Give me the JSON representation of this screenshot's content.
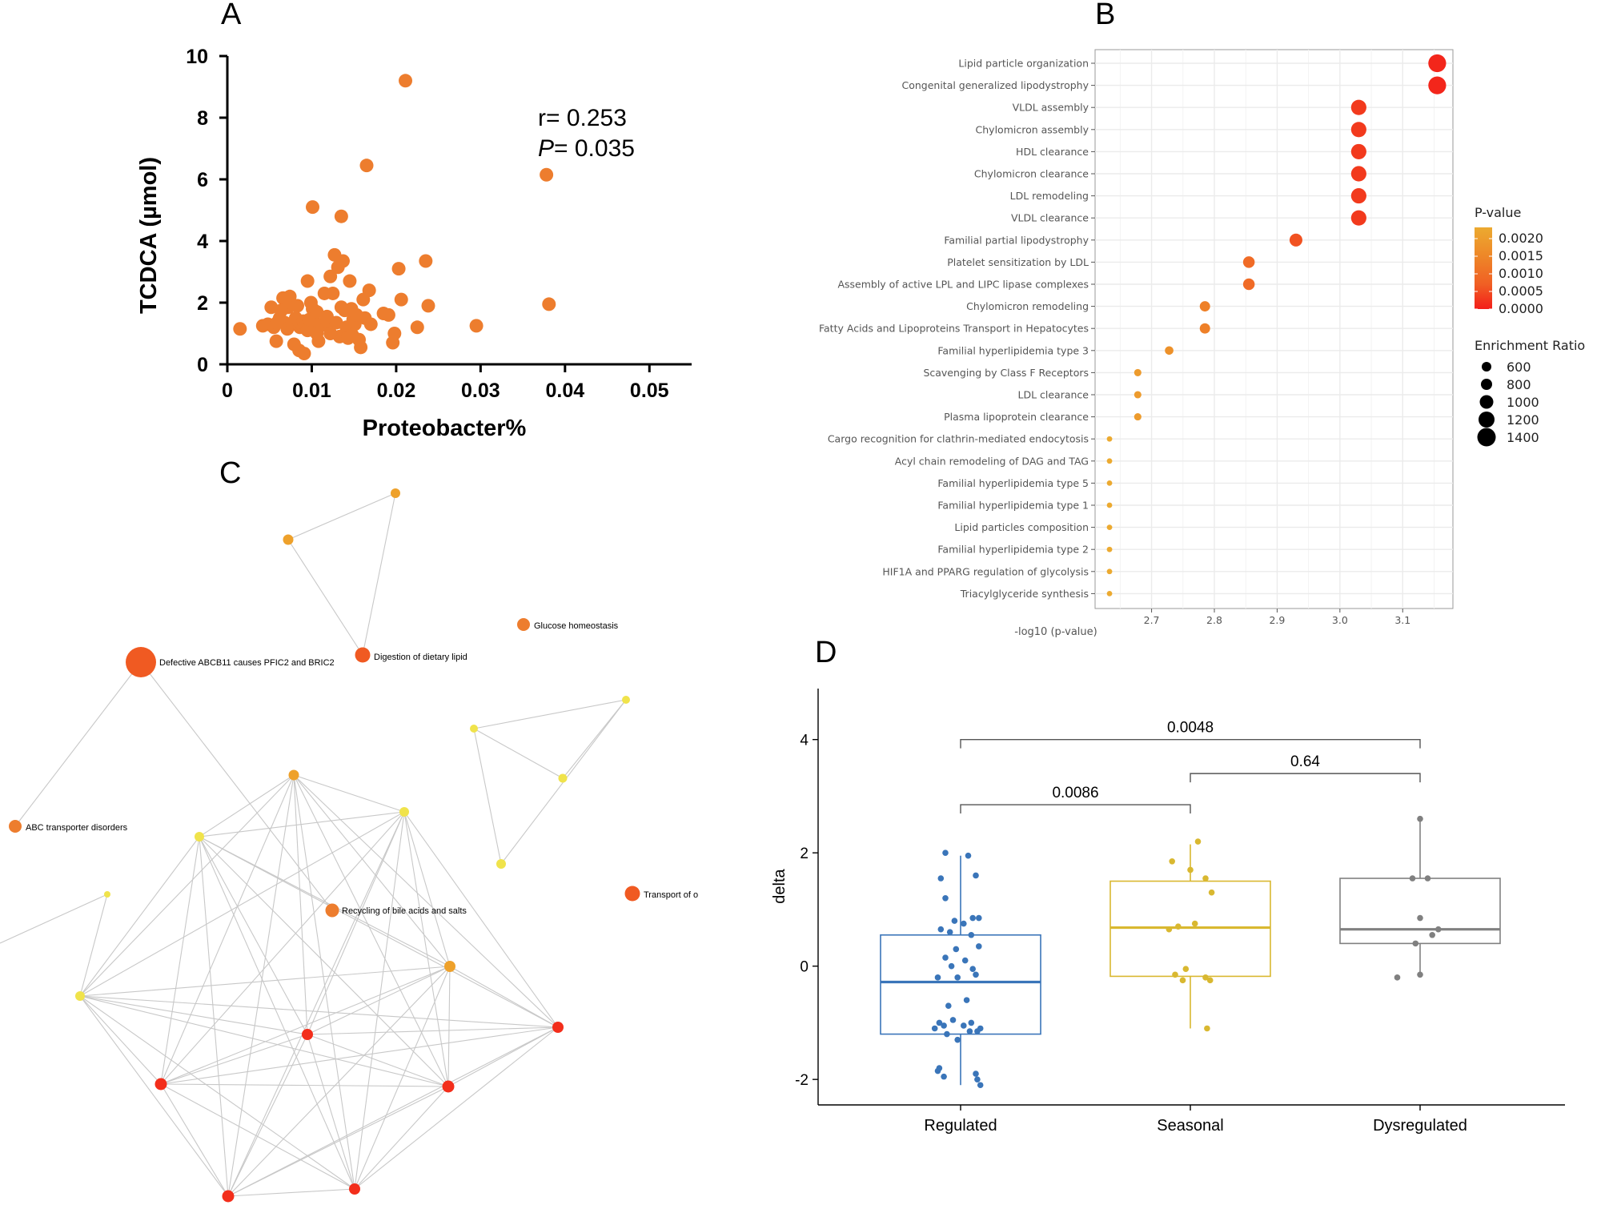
{
  "colors": {
    "orange": "#ed7d2e",
    "red_orange": "#f05a22",
    "red": "#f32e1b",
    "gold": "#eea12b",
    "yellow": "#f0e34b",
    "regulated": "#3a75b9",
    "seasonal": "#d9b830",
    "dysregulated": "#808080",
    "grid": "#ebebeb",
    "edge": "#c8c8c8"
  },
  "chart_data": [
    {
      "panel": "A",
      "type": "scatter",
      "xlabel": "Proteobacter%",
      "ylabel": "TCDCA (µmol)",
      "xlim": [
        0,
        0.055
      ],
      "ylim": [
        0,
        10
      ],
      "xticks": [
        "0",
        "0.01",
        "0.02",
        "0.03",
        "0.04",
        "0.05"
      ],
      "yticks": [
        "0",
        "2",
        "4",
        "6",
        "8",
        "10"
      ],
      "stat_r": "r= 0.253",
      "stat_p_label": "P",
      "stat_p_value": "= 0.035",
      "points": [
        [
          0.0015,
          1.15
        ],
        [
          0.0042,
          1.25
        ],
        [
          0.0048,
          1.3
        ],
        [
          0.0052,
          1.85
        ],
        [
          0.0055,
          1.2
        ],
        [
          0.0058,
          0.75
        ],
        [
          0.0062,
          1.5
        ],
        [
          0.0066,
          2.15
        ],
        [
          0.0068,
          1.35
        ],
        [
          0.0071,
          1.15
        ],
        [
          0.0074,
          2.2
        ],
        [
          0.0077,
          1.3
        ],
        [
          0.0079,
          0.65
        ],
        [
          0.0081,
          1.5
        ],
        [
          0.0083,
          1.9
        ],
        [
          0.0086,
          1.2
        ],
        [
          0.0088,
          1.3
        ],
        [
          0.009,
          1.4
        ],
        [
          0.0093,
          1.25
        ],
        [
          0.0095,
          1.1
        ],
        [
          0.0097,
          1.45
        ],
        [
          0.0099,
          2.0
        ],
        [
          0.0101,
          1.8
        ],
        [
          0.0103,
          1.35
        ],
        [
          0.0106,
          1.7
        ],
        [
          0.0108,
          0.75
        ],
        [
          0.011,
          1.25
        ],
        [
          0.0112,
          1.3
        ],
        [
          0.0115,
          2.3
        ],
        [
          0.0118,
          1.4
        ],
        [
          0.0122,
          2.85
        ],
        [
          0.0125,
          2.3
        ],
        [
          0.0127,
          3.55
        ],
        [
          0.0129,
          1.35
        ],
        [
          0.0131,
          3.15
        ],
        [
          0.0133,
          0.9
        ],
        [
          0.0135,
          4.8
        ],
        [
          0.0137,
          3.35
        ],
        [
          0.0139,
          1.75
        ],
        [
          0.0141,
          1.2
        ],
        [
          0.0143,
          0.85
        ],
        [
          0.0145,
          2.7
        ],
        [
          0.0147,
          1.8
        ],
        [
          0.0149,
          1.45
        ],
        [
          0.0151,
          1.3
        ],
        [
          0.0153,
          1.6
        ],
        [
          0.0156,
          0.8
        ],
        [
          0.0158,
          0.55
        ],
        [
          0.0161,
          2.1
        ],
        [
          0.0163,
          1.5
        ],
        [
          0.0165,
          6.45
        ],
        [
          0.0168,
          2.4
        ],
        [
          0.017,
          1.3
        ],
        [
          0.0085,
          0.45
        ],
        [
          0.0091,
          0.35
        ],
        [
          0.0101,
          5.1
        ],
        [
          0.0095,
          2.7
        ],
        [
          0.0106,
          1.0
        ],
        [
          0.0118,
          1.55
        ],
        [
          0.0122,
          1.0
        ],
        [
          0.0185,
          1.65
        ],
        [
          0.0191,
          1.6
        ],
        [
          0.0196,
          0.7
        ],
        [
          0.0198,
          1.0
        ],
        [
          0.0203,
          3.1
        ],
        [
          0.0206,
          2.1
        ],
        [
          0.0211,
          9.2
        ],
        [
          0.0225,
          1.2
        ],
        [
          0.0235,
          3.35
        ],
        [
          0.0238,
          1.9
        ],
        [
          0.0295,
          1.25
        ],
        [
          0.0378,
          6.15
        ],
        [
          0.0381,
          1.95
        ],
        [
          0.0135,
          1.85
        ],
        [
          0.0148,
          0.95
        ],
        [
          0.0072,
          1.85
        ],
        [
          0.0064,
          1.75
        ],
        [
          0.0059,
          1.35
        ]
      ]
    },
    {
      "panel": "B",
      "type": "scatter",
      "xlabel": "-log10 (p-value)",
      "xticks": [
        "2.7",
        "2.8",
        "2.9",
        "3.0",
        "3.1"
      ],
      "categories": [
        {
          "label": "Lipid particle organization",
          "x": 3.155,
          "ratio": 1450,
          "p": 0.0001
        },
        {
          "label": "Congenital generalized lipodystrophy",
          "x": 3.155,
          "ratio": 1450,
          "p": 0.0001
        },
        {
          "label": "VLDL assembly",
          "x": 3.03,
          "ratio": 1250,
          "p": 0.00035
        },
        {
          "label": "Chylomicron assembly",
          "x": 3.03,
          "ratio": 1250,
          "p": 0.00035
        },
        {
          "label": "HDL clearance",
          "x": 3.03,
          "ratio": 1250,
          "p": 0.00035
        },
        {
          "label": "Chylomicron clearance",
          "x": 3.03,
          "ratio": 1250,
          "p": 0.00035
        },
        {
          "label": "LDL remodeling",
          "x": 3.03,
          "ratio": 1250,
          "p": 0.00035
        },
        {
          "label": "VLDL clearance",
          "x": 3.03,
          "ratio": 1250,
          "p": 0.00035
        },
        {
          "label": "Familial partial lipodystrophy",
          "x": 2.93,
          "ratio": 1050,
          "p": 0.0007
        },
        {
          "label": "Platelet sensitization by LDL",
          "x": 2.855,
          "ratio": 950,
          "p": 0.0011
        },
        {
          "label": "Assembly of active LPL and LIPC lipase complexes",
          "x": 2.855,
          "ratio": 950,
          "p": 0.0011
        },
        {
          "label": "Chylomicron remodeling",
          "x": 2.785,
          "ratio": 850,
          "p": 0.0014
        },
        {
          "label": "Fatty Acids and Lipoproteins Transport in Hepatocytes",
          "x": 2.785,
          "ratio": 850,
          "p": 0.0014
        },
        {
          "label": "Familial hyperlipidemia type 3",
          "x": 2.728,
          "ratio": 700,
          "p": 0.0017
        },
        {
          "label": "Scavenging by Class F Receptors",
          "x": 2.678,
          "ratio": 600,
          "p": 0.0019
        },
        {
          "label": "LDL clearance",
          "x": 2.678,
          "ratio": 600,
          "p": 0.0019
        },
        {
          "label": "Plasma lipoprotein clearance",
          "x": 2.678,
          "ratio": 600,
          "p": 0.0019
        },
        {
          "label": "Cargo recognition for clathrin-mediated endocytosis",
          "x": 2.633,
          "ratio": 450,
          "p": 0.0022
        },
        {
          "label": "Acyl chain remodeling of DAG and TAG",
          "x": 2.633,
          "ratio": 450,
          "p": 0.0022
        },
        {
          "label": "Familial hyperlipidemia type 5",
          "x": 2.633,
          "ratio": 450,
          "p": 0.0022
        },
        {
          "label": "Familial  hyperlipidemia type 1",
          "x": 2.633,
          "ratio": 450,
          "p": 0.0022
        },
        {
          "label": "Lipid particles composition",
          "x": 2.633,
          "ratio": 450,
          "p": 0.0022
        },
        {
          "label": "Familial hyperlipidemia type 2",
          "x": 2.633,
          "ratio": 450,
          "p": 0.0022
        },
        {
          "label": "HIF1A and PPARG regulation of glycolysis",
          "x": 2.633,
          "ratio": 450,
          "p": 0.0022
        },
        {
          "label": "Triacylglyceride synthesis",
          "x": 2.633,
          "ratio": 450,
          "p": 0.0022
        }
      ],
      "legend_color_title": "P-value",
      "legend_color_ticks": [
        "0.0020",
        "0.0015",
        "0.0010",
        "0.0005",
        "0.0000"
      ],
      "legend_size_title": "Enrichment Ratio",
      "legend_size_ticks": [
        "600",
        "800",
        "1000",
        "1200",
        "1400"
      ]
    },
    {
      "panel": "C",
      "type": "network",
      "labels": {
        "abcb11": "Defective ABCB11 causes PFIC2 and BRIC2",
        "digestion": "Digestion of dietary lipid",
        "glucose": "Glucose homeostasis",
        "abc": "ABC transporter disorders",
        "recycling": "Recycling of bile acids and salts",
        "transport": "Transport of o"
      }
    },
    {
      "panel": "D",
      "type": "box",
      "ylabel": "delta",
      "ylim": [
        -2.45,
        4.9
      ],
      "yticks": [
        "-2",
        "0",
        "2",
        "4"
      ],
      "categories": [
        "Regulated",
        "Seasonal",
        "Dysregulated"
      ],
      "boxes": [
        {
          "q1": -1.2,
          "median": -0.28,
          "q3": 0.55,
          "wlo": -2.1,
          "whi": 1.95
        },
        {
          "q1": -0.18,
          "median": 0.68,
          "q3": 1.5,
          "wlo": -1.1,
          "whi": 2.15
        },
        {
          "q1": 0.4,
          "median": 0.65,
          "q3": 1.55,
          "wlo": -0.15,
          "whi": 2.6
        }
      ],
      "points": [
        [
          [
            -0.1,
            2.0
          ],
          [
            0.05,
            1.95
          ],
          [
            -0.13,
            1.55
          ],
          [
            0.1,
            1.6
          ],
          [
            -0.1,
            1.2
          ],
          [
            0.08,
            0.85
          ],
          [
            0.12,
            0.85
          ],
          [
            -0.04,
            0.8
          ],
          [
            -0.13,
            0.65
          ],
          [
            0.02,
            0.75
          ],
          [
            0.07,
            0.55
          ],
          [
            -0.07,
            0.6
          ],
          [
            -0.03,
            0.3
          ],
          [
            0.12,
            0.35
          ],
          [
            -0.1,
            0.15
          ],
          [
            0.03,
            0.1
          ],
          [
            -0.06,
            0.0
          ],
          [
            0.08,
            -0.05
          ],
          [
            -0.15,
            -0.2
          ],
          [
            0.1,
            -0.15
          ],
          [
            -0.02,
            -0.2
          ],
          [
            -0.08,
            -0.7
          ],
          [
            0.04,
            -0.6
          ],
          [
            -0.14,
            -1.0
          ],
          [
            -0.05,
            -0.95
          ],
          [
            0.07,
            -1.0
          ],
          [
            -0.11,
            -1.05
          ],
          [
            0.02,
            -1.05
          ],
          [
            0.13,
            -1.1
          ],
          [
            -0.17,
            -1.1
          ],
          [
            -0.09,
            -1.2
          ],
          [
            -0.02,
            -1.3
          ],
          [
            0.06,
            -1.15
          ],
          [
            0.11,
            -1.15
          ],
          [
            -0.15,
            -1.85
          ],
          [
            -0.14,
            -1.8
          ],
          [
            -0.11,
            -1.95
          ],
          [
            0.1,
            -1.9
          ],
          [
            0.11,
            -2.0
          ],
          [
            0.13,
            -2.1
          ]
        ],
        [
          [
            0.05,
            2.2
          ],
          [
            -0.12,
            1.85
          ],
          [
            0.0,
            1.7
          ],
          [
            0.1,
            1.55
          ],
          [
            0.14,
            1.3
          ],
          [
            -0.14,
            0.65
          ],
          [
            -0.08,
            0.7
          ],
          [
            0.03,
            0.75
          ],
          [
            -0.03,
            -0.05
          ],
          [
            -0.1,
            -0.15
          ],
          [
            -0.05,
            -0.25
          ],
          [
            0.13,
            -0.25
          ],
          [
            0.1,
            -0.2
          ],
          [
            0.11,
            -1.1
          ]
        ],
        [
          [
            -0.15,
            -0.2
          ],
          [
            0.0,
            -0.15
          ],
          [
            -0.05,
            1.55
          ],
          [
            0.0,
            2.6
          ],
          [
            0.05,
            1.55
          ],
          [
            0.0,
            0.85
          ],
          [
            0.12,
            0.65
          ],
          [
            0.08,
            0.55
          ],
          [
            -0.03,
            0.4
          ]
        ]
      ],
      "brackets": [
        {
          "from": 0,
          "to": 1,
          "y": 2.85,
          "label": "0.0086"
        },
        {
          "from": 1,
          "to": 2,
          "y": 3.4,
          "label": "0.64"
        },
        {
          "from": 0,
          "to": 2,
          "y": 4.0,
          "label": "0.0048"
        }
      ]
    }
  ],
  "panel_letters": {
    "a": "A",
    "b": "B",
    "c": "C",
    "d": "D"
  }
}
